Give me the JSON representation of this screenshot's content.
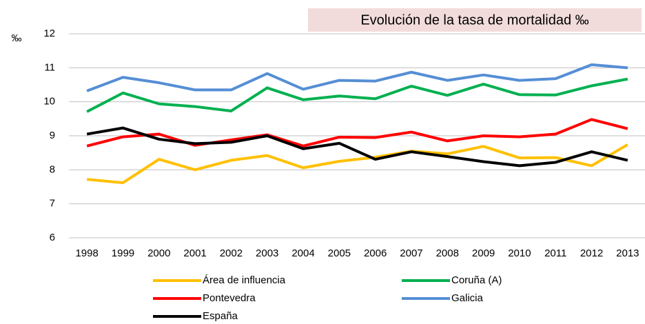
{
  "chart_data": {
    "type": "line",
    "title": "Evolución de la tasa de mortalidad ‰",
    "y_label": "‰",
    "categories": [
      "1998",
      "1999",
      "2000",
      "2001",
      "2002",
      "2003",
      "2004",
      "2005",
      "2006",
      "2007",
      "2008",
      "2009",
      "2010",
      "2011",
      "2012",
      "2013"
    ],
    "series": [
      {
        "name": "Área de influencia",
        "color": "#ffc000",
        "values": [
          7.72,
          7.62,
          8.31,
          8.0,
          8.28,
          8.42,
          8.06,
          8.25,
          8.37,
          8.55,
          8.47,
          8.69,
          8.35,
          8.36,
          8.12,
          8.74
        ]
      },
      {
        "name": "Coruña (A)",
        "color": "#00b050",
        "values": [
          9.71,
          10.26,
          9.94,
          9.86,
          9.73,
          10.41,
          10.06,
          10.17,
          10.09,
          10.46,
          10.19,
          10.52,
          10.21,
          10.2,
          10.47,
          10.67
        ]
      },
      {
        "name": "Pontevedra",
        "color": "#ff0000",
        "values": [
          8.7,
          8.97,
          9.05,
          8.72,
          8.88,
          9.03,
          8.7,
          8.96,
          8.95,
          9.11,
          8.85,
          9.0,
          8.97,
          9.05,
          9.48,
          9.21
        ]
      },
      {
        "name": "Galicia",
        "color": "#558ed5",
        "values": [
          10.32,
          10.72,
          10.56,
          10.35,
          10.35,
          10.83,
          10.37,
          10.63,
          10.61,
          10.87,
          10.63,
          10.79,
          10.63,
          10.68,
          11.09,
          11.0
        ]
      },
      {
        "name": "España",
        "color": "#000000",
        "values": [
          9.05,
          9.23,
          8.9,
          8.77,
          8.81,
          9.0,
          8.62,
          8.78,
          8.31,
          8.53,
          8.39,
          8.24,
          8.12,
          8.22,
          8.53,
          8.28
        ]
      }
    ],
    "ylim": [
      6,
      12
    ],
    "yticks": [
      6,
      7,
      8,
      9,
      10,
      11,
      12
    ],
    "grid": true
  }
}
